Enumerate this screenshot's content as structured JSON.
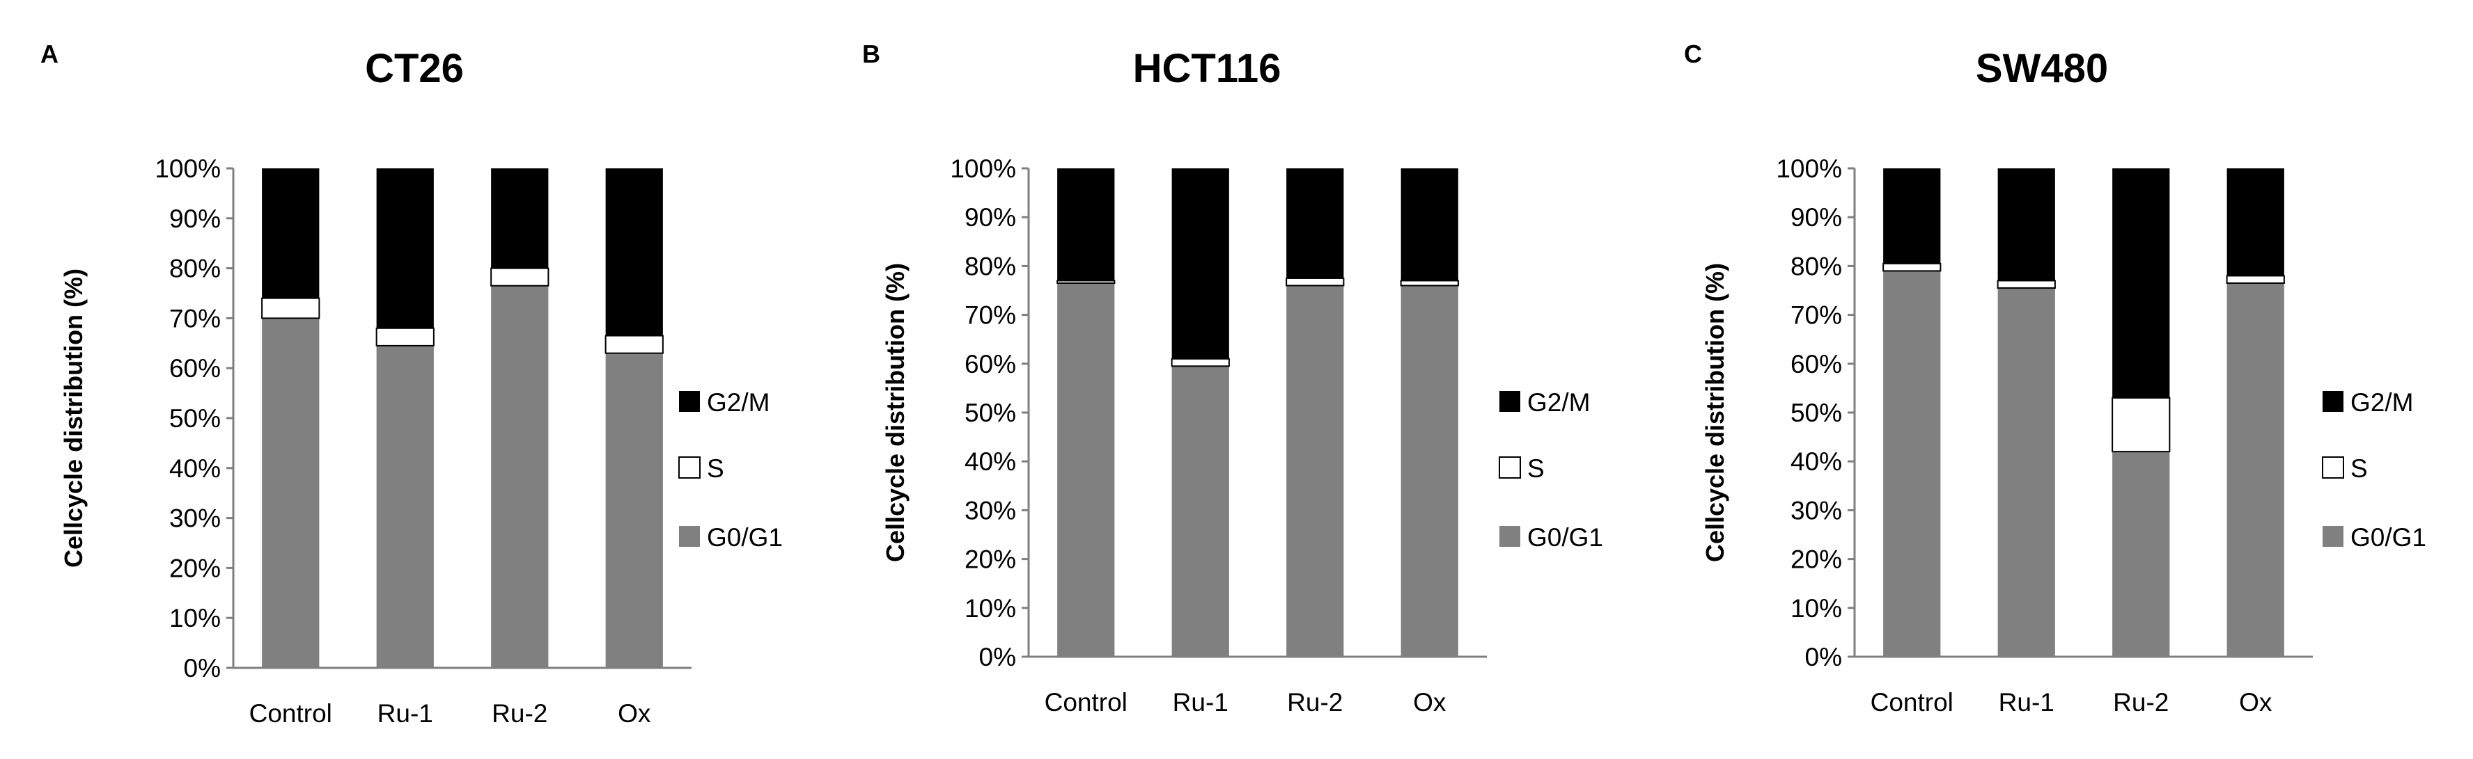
{
  "figure": {
    "panels": [
      {
        "letter": "A",
        "chart_index": 0
      },
      {
        "letter": "B",
        "chart_index": 1
      },
      {
        "letter": "C",
        "chart_index": 2
      }
    ]
  },
  "chart_data": [
    {
      "type": "bar",
      "stacked": true,
      "percent_stacked": true,
      "title": "CT26",
      "ylabel": "Cellcycle distribution (%)",
      "xlabel": "",
      "categories": [
        "Control",
        "Ru-1",
        "Ru-2",
        "Ox"
      ],
      "ylim": [
        0,
        100
      ],
      "yticks": [
        "0%",
        "10%",
        "20%",
        "30%",
        "40%",
        "50%",
        "60%",
        "70%",
        "80%",
        "90%",
        "100%"
      ],
      "series": [
        {
          "name": "G0/G1",
          "color": "#808080",
          "values": [
            70,
            64.5,
            76.5,
            63
          ]
        },
        {
          "name": "S",
          "color": "#ffffff",
          "values": [
            4,
            3.5,
            3.5,
            3.5
          ]
        },
        {
          "name": "G2/M",
          "color": "#000000",
          "values": [
            26,
            32,
            20,
            33.5
          ]
        }
      ],
      "legend": {
        "position": "right",
        "order": [
          "G2/M",
          "S",
          "G0/G1"
        ]
      },
      "grid": false
    },
    {
      "type": "bar",
      "stacked": true,
      "percent_stacked": true,
      "title": "HCT116",
      "ylabel": "Cellcycle distribution (%)",
      "xlabel": "",
      "categories": [
        "Control",
        "Ru-1",
        "Ru-2",
        "Ox"
      ],
      "ylim": [
        0,
        100
      ],
      "yticks": [
        "0%",
        "10%",
        "20%",
        "30%",
        "40%",
        "50%",
        "60%",
        "70%",
        "80%",
        "90%",
        "100%"
      ],
      "series": [
        {
          "name": "G0/G1",
          "color": "#808080",
          "values": [
            76.5,
            59.5,
            76,
            76
          ]
        },
        {
          "name": "S",
          "color": "#ffffff",
          "values": [
            0.5,
            1.5,
            1.5,
            1
          ]
        },
        {
          "name": "G2/M",
          "color": "#000000",
          "values": [
            23,
            39,
            22.5,
            23
          ]
        }
      ],
      "legend": {
        "position": "right",
        "order": [
          "G2/M",
          "S",
          "G0/G1"
        ]
      },
      "grid": false
    },
    {
      "type": "bar",
      "stacked": true,
      "percent_stacked": true,
      "title": "SW480",
      "ylabel": "Cellcycle distribution (%)",
      "xlabel": "",
      "categories": [
        "Control",
        "Ru-1",
        "Ru-2",
        "Ox"
      ],
      "ylim": [
        0,
        100
      ],
      "yticks": [
        "0%",
        "10%",
        "20%",
        "30%",
        "40%",
        "50%",
        "60%",
        "70%",
        "80%",
        "90%",
        "100%"
      ],
      "series": [
        {
          "name": "G0/G1",
          "color": "#808080",
          "values": [
            79,
            75.5,
            42,
            76.5
          ]
        },
        {
          "name": "S",
          "color": "#ffffff",
          "values": [
            1.5,
            1.5,
            11,
            1.5
          ]
        },
        {
          "name": "G2/M",
          "color": "#000000",
          "values": [
            19.5,
            23,
            47,
            22
          ]
        }
      ],
      "legend": {
        "position": "right",
        "order": [
          "G2/M",
          "S",
          "G0/G1"
        ]
      },
      "grid": false
    }
  ]
}
